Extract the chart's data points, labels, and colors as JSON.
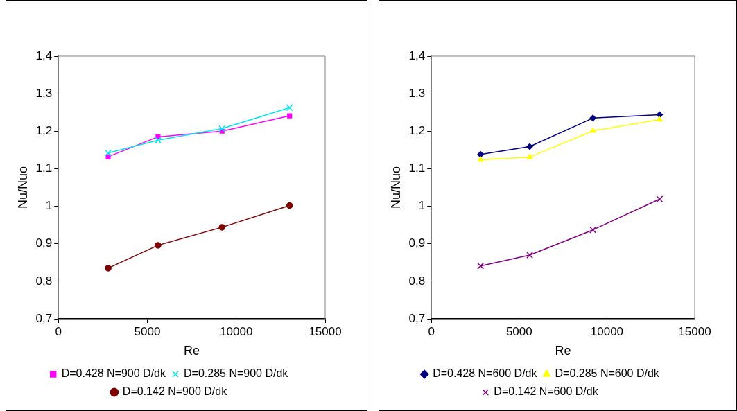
{
  "chart_data": [
    {
      "type": "line",
      "xlabel": "Re",
      "ylabel": "Nu/Nuo",
      "x": [
        2800,
        5600,
        9200,
        13000
      ],
      "xlim": [
        0,
        15000
      ],
      "xticks": [
        0,
        5000,
        10000,
        15000
      ],
      "ylim": [
        0.7,
        1.4
      ],
      "yticks": [
        {
          "value": 0.7,
          "label": "0,7"
        },
        {
          "value": 0.8,
          "label": "0,8"
        },
        {
          "value": 0.9,
          "label": "0,9"
        },
        1,
        {
          "value": 1.1,
          "label": "1,1"
        },
        {
          "value": 1.2,
          "label": "1,2"
        },
        {
          "value": 1.3,
          "label": "1,3"
        },
        {
          "value": 1.4,
          "label": "1,4"
        }
      ],
      "grid": false,
      "legend": "bottom",
      "line_style": "solid",
      "series": [
        {
          "name": "D=0.428 N=900 D/dk",
          "color": "#ff00ff",
          "marker": "square",
          "values": [
            1.132,
            1.185,
            1.2,
            1.241
          ]
        },
        {
          "name": "D=0.285 N=900 D/dk",
          "color": "#00e5ee",
          "marker": "cross",
          "values": [
            1.142,
            1.176,
            1.207,
            1.263
          ]
        },
        {
          "name": "D=0.142 N=900 D/dk",
          "color": "#800000",
          "marker": "circle",
          "values": [
            0.835,
            0.896,
            0.944,
            1.002
          ]
        }
      ]
    },
    {
      "type": "line",
      "xlabel": "Re",
      "ylabel": "Nu/Nuo",
      "x": [
        2800,
        5600,
        9200,
        13000
      ],
      "xlim": [
        0,
        15000
      ],
      "xticks": [
        0,
        5000,
        10000,
        15000
      ],
      "ylim": [
        0.7,
        1.4
      ],
      "yticks": [
        {
          "value": 0.7,
          "label": "0,7"
        },
        {
          "value": 0.8,
          "label": "0,8"
        },
        {
          "value": 0.9,
          "label": "0,9"
        },
        1,
        {
          "value": 1.1,
          "label": "1,1"
        },
        {
          "value": 1.2,
          "label": "1,2"
        },
        {
          "value": 1.3,
          "label": "1,3"
        },
        {
          "value": 1.4,
          "label": "1,4"
        }
      ],
      "grid": false,
      "legend": "bottom",
      "line_style": "solid",
      "series": [
        {
          "name": "D=0.428 N=600 D/dk",
          "color": "#000080",
          "marker": "diamond",
          "values": [
            1.138,
            1.159,
            1.235,
            1.244
          ]
        },
        {
          "name": "D=0.285 N=600 D/dk",
          "color": "#ffff00",
          "marker": "triangle",
          "values": [
            1.124,
            1.131,
            1.201,
            1.231
          ]
        },
        {
          "name": "D=0.142 N=600 D/dk",
          "color": "#800080",
          "marker": "cross",
          "values": [
            0.841,
            0.87,
            0.937,
            1.019
          ]
        }
      ]
    }
  ]
}
